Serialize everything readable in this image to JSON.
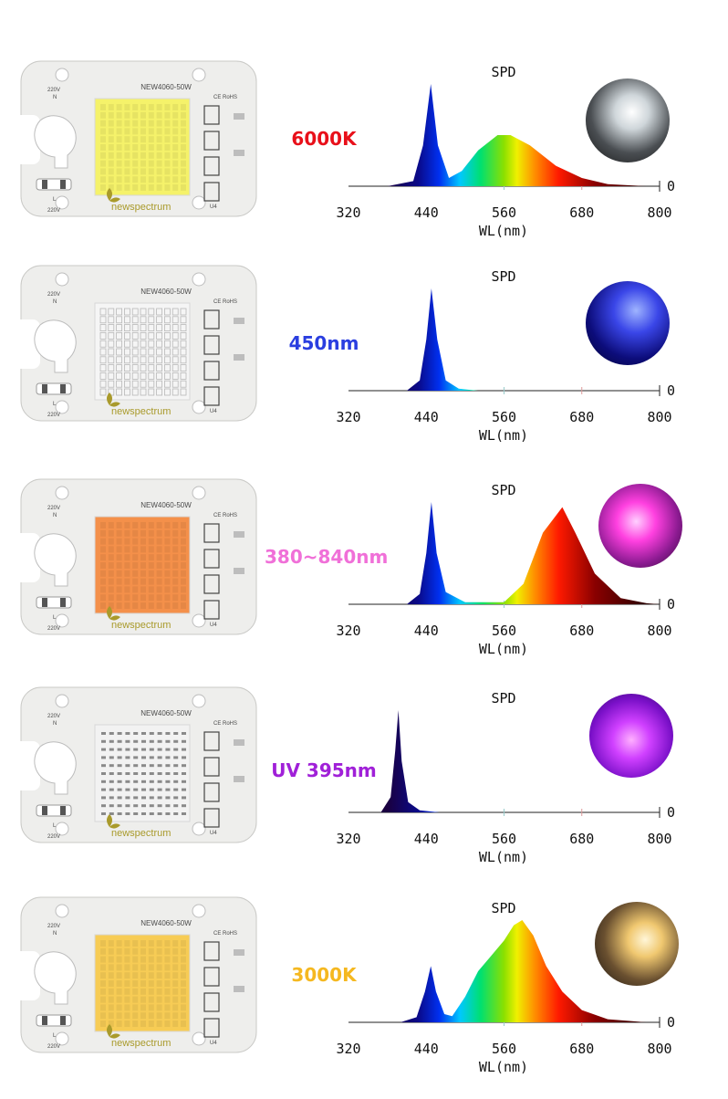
{
  "board": {
    "model": "NEW4060-50W",
    "cert": "CE RoHS",
    "voltage": "220V",
    "voltage_line": "N",
    "line_mark": "L",
    "ic_mark": "U4",
    "brand": "newspectrum"
  },
  "colors": {
    "board": "#eeeeec",
    "text_dark": "#222222",
    "brand": "#a99a2b"
  },
  "rows": [
    {
      "id": "6000k",
      "label": "6000K",
      "label_color": "#e8101a",
      "chip_color": "#f5f26a",
      "chip_style": "solid",
      "photo_tone": "cool"
    },
    {
      "id": "450nm",
      "label": "450nm",
      "label_color": "#2a3ee0",
      "chip_color": "#f5f5f5",
      "chip_style": "grid",
      "photo_tone": "blue"
    },
    {
      "id": "full",
      "label": "380~840nm",
      "label_color": "#f070d8",
      "chip_color": "#f4904a",
      "chip_style": "solid",
      "photo_tone": "pink"
    },
    {
      "id": "uv",
      "label": "UV 395nm",
      "label_color": "#a020d8",
      "chip_color": "#f2f2f2",
      "chip_style": "dots",
      "photo_tone": "uv"
    },
    {
      "id": "3000k",
      "label": "3000K",
      "label_color": "#f5b820",
      "chip_color": "#f7cc55",
      "chip_style": "solid",
      "photo_tone": "warm"
    }
  ],
  "chart_data": [
    {
      "type": "area",
      "title": "SPD",
      "xlabel": "WL(nm)",
      "ylabel": "",
      "xlim": [
        320,
        800
      ],
      "ylim": [
        0,
        1
      ],
      "xticks": [
        320,
        440,
        560,
        680,
        800
      ],
      "baseline_label": "0",
      "series": [
        {
          "name": "6000K",
          "points": [
            [
              380,
              0
            ],
            [
              420,
              0.05
            ],
            [
              435,
              0.4
            ],
            [
              447,
              1.0
            ],
            [
              458,
              0.4
            ],
            [
              475,
              0.08
            ],
            [
              495,
              0.15
            ],
            [
              520,
              0.35
            ],
            [
              550,
              0.5
            ],
            [
              570,
              0.5
            ],
            [
              600,
              0.4
            ],
            [
              640,
              0.2
            ],
            [
              680,
              0.08
            ],
            [
              720,
              0.02
            ],
            [
              780,
              0
            ]
          ]
        }
      ]
    },
    {
      "type": "area",
      "title": "SPD",
      "xlabel": "WL(nm)",
      "ylabel": "",
      "xlim": [
        320,
        800
      ],
      "ylim": [
        0,
        1
      ],
      "xticks": [
        320,
        440,
        560,
        680,
        800
      ],
      "baseline_label": "0",
      "series": [
        {
          "name": "450nm",
          "points": [
            [
              410,
              0
            ],
            [
              430,
              0.1
            ],
            [
              440,
              0.5
            ],
            [
              448,
              1.0
            ],
            [
              457,
              0.5
            ],
            [
              470,
              0.1
            ],
            [
              490,
              0.02
            ],
            [
              520,
              0
            ]
          ]
        }
      ]
    },
    {
      "type": "area",
      "title": "SPD",
      "xlabel": "WL(nm)",
      "ylabel": "",
      "xlim": [
        320,
        800
      ],
      "ylim": [
        0,
        1
      ],
      "xticks": [
        320,
        440,
        560,
        680,
        800
      ],
      "baseline_label": "0",
      "series": [
        {
          "name": "380~840nm",
          "points": [
            [
              410,
              0
            ],
            [
              430,
              0.1
            ],
            [
              440,
              0.5
            ],
            [
              448,
              1.0
            ],
            [
              456,
              0.5
            ],
            [
              470,
              0.12
            ],
            [
              500,
              0.02
            ],
            [
              560,
              0.02
            ],
            [
              590,
              0.2
            ],
            [
              620,
              0.7
            ],
            [
              650,
              0.95
            ],
            [
              670,
              0.7
            ],
            [
              700,
              0.3
            ],
            [
              740,
              0.06
            ],
            [
              780,
              0.01
            ],
            [
              800,
              0
            ]
          ]
        }
      ]
    },
    {
      "type": "area",
      "title": "SPD",
      "xlabel": "WL(nm)",
      "ylabel": "",
      "xlim": [
        320,
        800
      ],
      "ylim": [
        0,
        1
      ],
      "xticks": [
        320,
        440,
        560,
        680,
        800
      ],
      "baseline_label": "0",
      "series": [
        {
          "name": "UV 395nm",
          "points": [
            [
              370,
              0
            ],
            [
              385,
              0.15
            ],
            [
              392,
              0.6
            ],
            [
              397,
              1.0
            ],
            [
              402,
              0.5
            ],
            [
              412,
              0.1
            ],
            [
              430,
              0.02
            ],
            [
              460,
              0
            ]
          ]
        }
      ]
    },
    {
      "type": "area",
      "title": "SPD",
      "xlabel": "WL(nm)",
      "ylabel": "",
      "xlim": [
        320,
        800
      ],
      "ylim": [
        0,
        1
      ],
      "xticks": [
        320,
        440,
        560,
        680,
        800
      ],
      "baseline_label": "0",
      "series": [
        {
          "name": "3000K",
          "points": [
            [
              400,
              0
            ],
            [
              425,
              0.05
            ],
            [
              438,
              0.3
            ],
            [
              447,
              0.55
            ],
            [
              455,
              0.3
            ],
            [
              468,
              0.08
            ],
            [
              480,
              0.06
            ],
            [
              500,
              0.25
            ],
            [
              520,
              0.5
            ],
            [
              540,
              0.65
            ],
            [
              560,
              0.8
            ],
            [
              575,
              0.95
            ],
            [
              588,
              1.0
            ],
            [
              605,
              0.85
            ],
            [
              625,
              0.55
            ],
            [
              650,
              0.3
            ],
            [
              680,
              0.12
            ],
            [
              720,
              0.03
            ],
            [
              780,
              0
            ]
          ]
        }
      ]
    }
  ]
}
